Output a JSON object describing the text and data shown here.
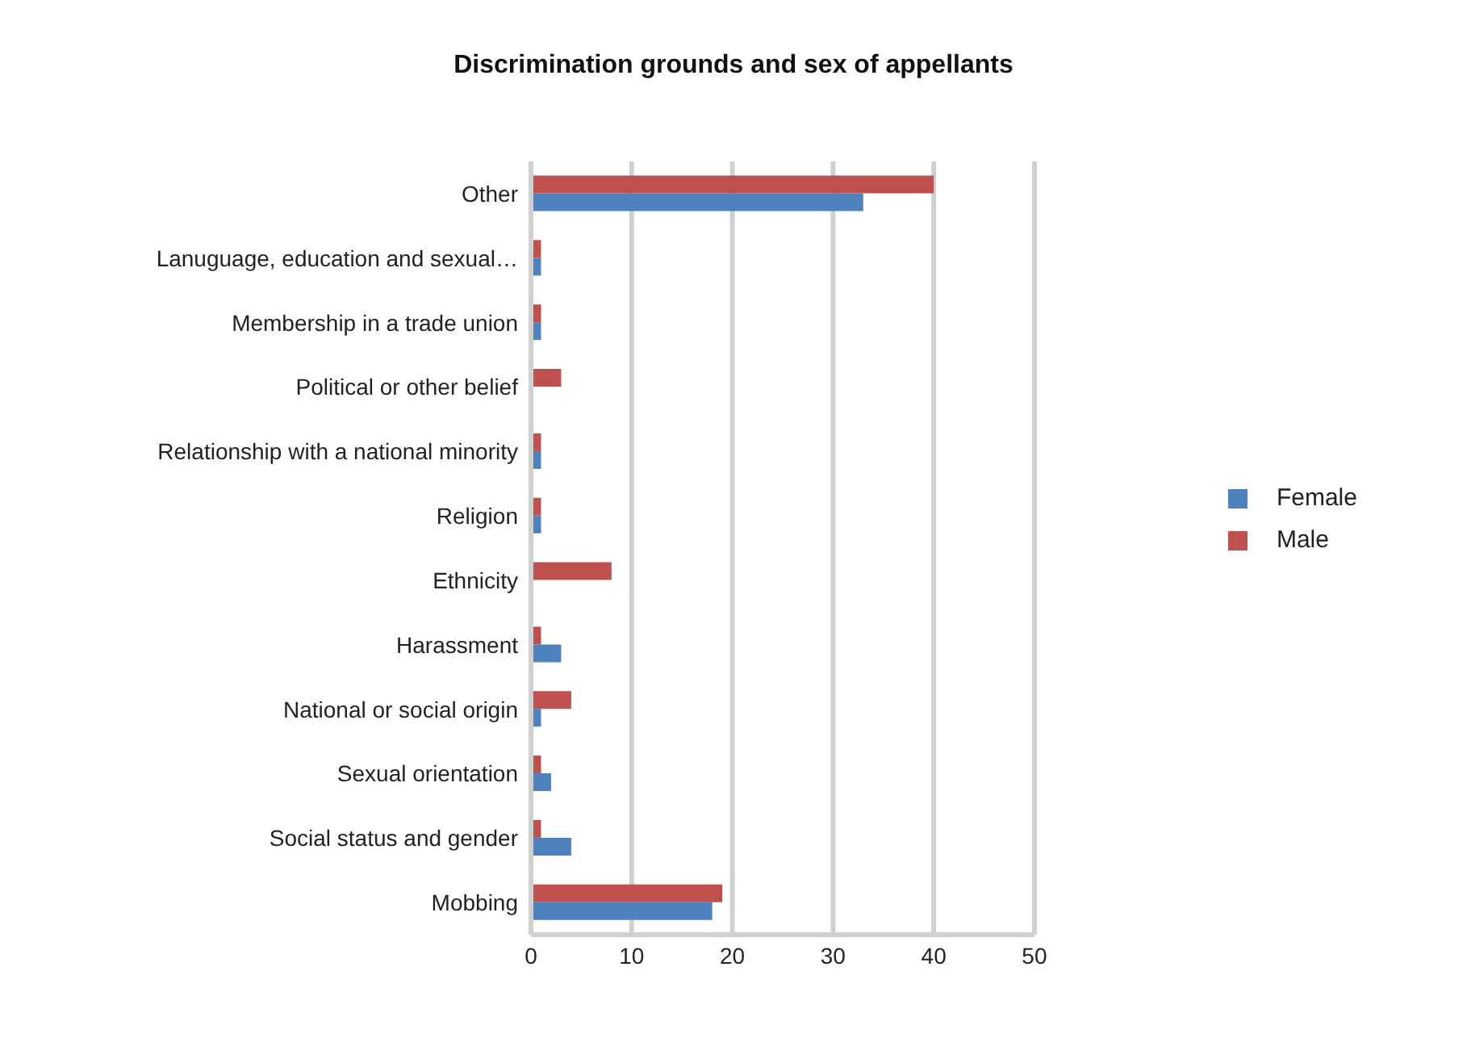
{
  "chart_data": {
    "type": "bar",
    "orientation": "horizontal",
    "title": "Discrimination grounds and sex of appellants",
    "categories": [
      "Other",
      "Lanuguage, education and sexual…",
      "Membership in a trade union",
      "Political or other belief",
      "Relationship with a national minority",
      "Religion",
      "Ethnicity",
      "Harassment",
      "National or social origin",
      "Sexual orientation",
      "Social status and gender",
      "Mobbing"
    ],
    "series": [
      {
        "name": "Male",
        "color": "#c0504d",
        "values": [
          40,
          1,
          1,
          3,
          1,
          1,
          8,
          1,
          4,
          1,
          1,
          19
        ]
      },
      {
        "name": "Female",
        "color": "#4f81bd",
        "values": [
          33,
          1,
          1,
          0,
          1,
          1,
          0,
          3,
          1,
          2,
          4,
          18
        ]
      }
    ],
    "xlim": [
      0,
      50
    ],
    "xticks": [
      0,
      10,
      20,
      30,
      40,
      50
    ],
    "grid": "x",
    "legend": "right"
  }
}
